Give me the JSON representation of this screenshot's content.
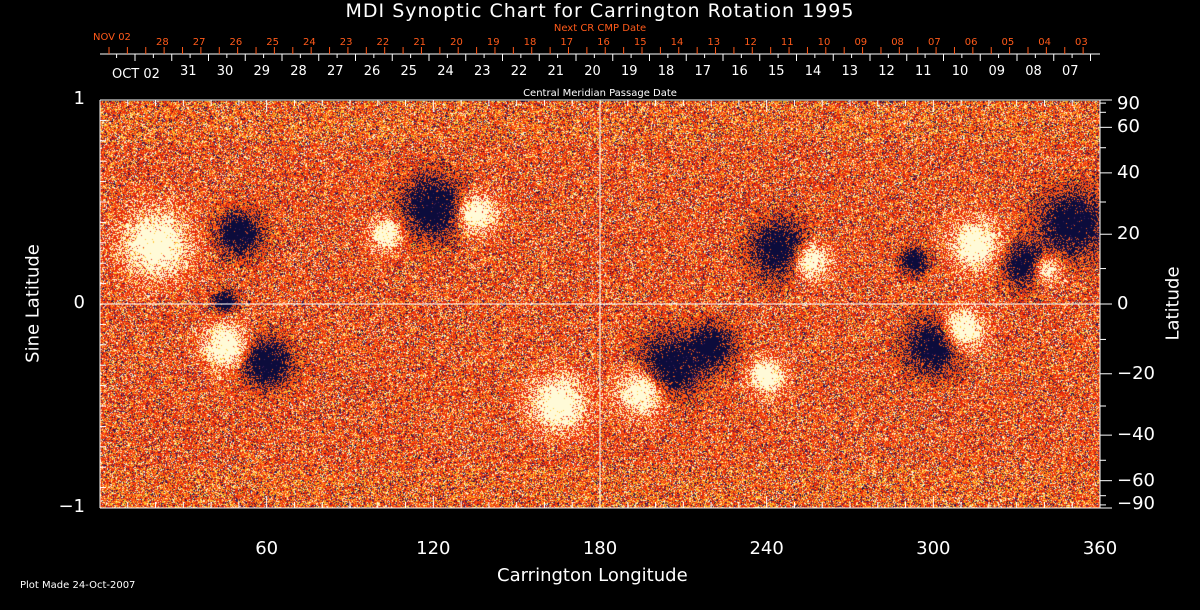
{
  "chart_data": {
    "type": "heatmap",
    "title": "MDI Synoptic Chart for Carrington Rotation 1995",
    "xlabel": "Carrington Longitude",
    "ylabel_left": "Sine Latitude",
    "ylabel_right": "Latitude",
    "xlim": [
      0,
      360
    ],
    "ylim": [
      -1,
      1
    ],
    "x_ticks": [
      "60",
      "120",
      "180",
      "240",
      "300",
      "360"
    ],
    "y_ticks_left": [
      "1",
      "0",
      "−1"
    ],
    "y_ticks_right": [
      "90",
      "60",
      "40",
      "20",
      "0",
      "−20",
      "−40",
      "−60",
      "−90"
    ],
    "top_axis_next_label": "Next CR CMP Date",
    "top_axis_next_dates": [
      "NOV 02",
      "28",
      "27",
      "26",
      "25",
      "24",
      "23",
      "22",
      "21",
      "20",
      "19",
      "18",
      "17",
      "16",
      "15",
      "14",
      "13",
      "12",
      "11",
      "10",
      "09",
      "08",
      "07",
      "06",
      "05",
      "04",
      "03"
    ],
    "top_axis_cmp_label": "Central Meridian Passage Date",
    "top_axis_cmp_dates": [
      "OCT 02",
      "31",
      "30",
      "29",
      "28",
      "27",
      "26",
      "25",
      "24",
      "23",
      "22",
      "21",
      "20",
      "19",
      "18",
      "17",
      "16",
      "15",
      "14",
      "13",
      "12",
      "11",
      "10",
      "09",
      "08",
      "07"
    ],
    "colors": {
      "background_field": "#ff4a10",
      "positive": "#fffbe0",
      "negative": "#10104a",
      "next_axis": "#ff5a1a",
      "axes": "#ffffff"
    }
  },
  "footer": {
    "plot_made": "Plot Made 24-Oct-2007"
  }
}
